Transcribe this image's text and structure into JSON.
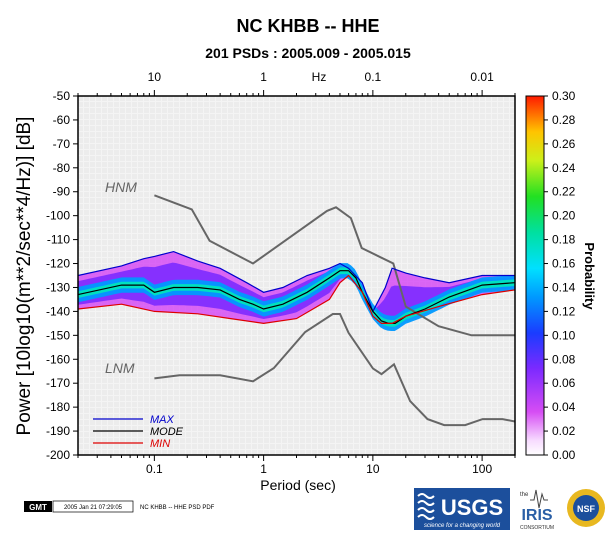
{
  "colors": {
    "hnm_lnm": "#666666",
    "max": "#0000cc",
    "mode": "#000000",
    "min": "#dd0000",
    "usgs_blue": "#1c4f9c",
    "iris_blue": "#2a5fa6"
  },
  "footer": {
    "gmt_tag": "GMT",
    "timestamp": "2005 Jan 21 07:29:05",
    "caption": "NC KHBB -- HHE PSD PDF"
  },
  "logos": {
    "usgs_text": "USGS",
    "usgs_tagline": "science for a changing world",
    "iris_the": "the",
    "iris_text": "IRIS",
    "iris_consortium": "CONSORTIUM",
    "nsf_text": "NSF"
  },
  "chart_data": {
    "type": "heatmap",
    "title": "NC KHBB -- HHE",
    "subtitle": "201 PSDs : 2005.009 - 2005.015",
    "xlabel": "Period (sec)",
    "ylabel": "Power [10log10(m**2/sec**4/Hz)] [dB]",
    "top_axis_label": "Hz",
    "x_scale": "log",
    "xlim": [
      0.02,
      200
    ],
    "ylim": [
      -200,
      -50
    ],
    "x_ticks": [
      {
        "value": 0.1,
        "label": "0.1"
      },
      {
        "value": 1,
        "label": "1"
      },
      {
        "value": 10,
        "label": "10"
      },
      {
        "value": 100,
        "label": "100"
      }
    ],
    "top_ticks": [
      {
        "value": 0.1,
        "label": "10"
      },
      {
        "value": 1,
        "label": "1"
      },
      {
        "value": 10,
        "label": "0.1"
      },
      {
        "value": 100,
        "label": "0.01"
      }
    ],
    "y_ticks": [
      -50,
      -60,
      -70,
      -80,
      -90,
      -100,
      -110,
      -120,
      -130,
      -140,
      -150,
      -160,
      -170,
      -180,
      -190,
      -200
    ],
    "colorbar": {
      "label": "Probability",
      "range": [
        0.0,
        0.3
      ],
      "ticks": [
        "0.00",
        "0.02",
        "0.04",
        "0.06",
        "0.08",
        "0.10",
        "0.12",
        "0.14",
        "0.16",
        "0.18",
        "0.20",
        "0.22",
        "0.24",
        "0.26",
        "0.28",
        "0.30"
      ]
    },
    "model_labels": {
      "hnm": "HNM",
      "lnm": "LNM"
    },
    "legend": [
      {
        "name": "MAX",
        "color": "#0000cc"
      },
      {
        "name": "MODE",
        "color": "#000000"
      },
      {
        "name": "MIN",
        "color": "#dd0000"
      }
    ],
    "series": [
      {
        "name": "HNM",
        "x": [
          0.1,
          0.22,
          0.32,
          0.8,
          3.8,
          4.6,
          6.3,
          7.9,
          15.4,
          20,
          40,
          80,
          100,
          200
        ],
        "y": [
          -91.5,
          -97.4,
          -110.5,
          -120,
          -98,
          -96.5,
          -101,
          -113.5,
          -120,
          -138,
          -146.2,
          -150,
          -150,
          -150
        ]
      },
      {
        "name": "LNM",
        "x": [
          0.1,
          0.17,
          0.4,
          0.8,
          1.24,
          2.4,
          4.3,
          5,
          6,
          10,
          12,
          15.6,
          21.9,
          31.6,
          45,
          70,
          101,
          154,
          200
        ],
        "y": [
          -168,
          -166.7,
          -166.7,
          -169.2,
          -163.7,
          -148.6,
          -141.1,
          -141.1,
          -149,
          -163.8,
          -166.2,
          -162.1,
          -177.5,
          -185,
          -187.5,
          -187.5,
          -185,
          -185,
          -186
        ]
      },
      {
        "name": "MAX",
        "x": [
          0.02,
          0.05,
          0.08,
          0.1,
          0.15,
          0.25,
          0.4,
          0.7,
          1.0,
          1.5,
          2.5,
          4,
          5,
          6,
          8,
          10,
          13,
          15,
          20,
          30,
          50,
          100,
          200
        ],
        "y": [
          -125,
          -121,
          -118,
          -117,
          -115,
          -119,
          -122,
          -128,
          -132,
          -130,
          -125,
          -122,
          -120,
          -122,
          -128,
          -140,
          -130,
          -122,
          -124,
          -126,
          -128,
          -125,
          -125
        ]
      },
      {
        "name": "MODE",
        "x": [
          0.02,
          0.05,
          0.08,
          0.1,
          0.15,
          0.25,
          0.4,
          0.6,
          0.8,
          1.0,
          1.5,
          2.5,
          4,
          5,
          6,
          7,
          8,
          10,
          12,
          14,
          16,
          20,
          30,
          50,
          100,
          200
        ],
        "y": [
          -133,
          -129,
          -129,
          -132,
          -130,
          -130,
          -131,
          -135,
          -137,
          -139,
          -137,
          -132,
          -126,
          -123,
          -123,
          -126,
          -132,
          -140,
          -144,
          -145,
          -145,
          -142,
          -139,
          -134,
          -129,
          -128
        ]
      },
      {
        "name": "MIN",
        "x": [
          0.02,
          0.05,
          0.1,
          0.25,
          0.5,
          1.0,
          2.0,
          4,
          5,
          6,
          8,
          10,
          12,
          15,
          20,
          40,
          100,
          200
        ],
        "y": [
          -139,
          -137,
          -140,
          -141,
          -143,
          -145,
          -143,
          -135,
          -128,
          -125,
          -132,
          -142,
          -145,
          -145,
          -142,
          -138,
          -133,
          -131
        ]
      }
    ]
  }
}
